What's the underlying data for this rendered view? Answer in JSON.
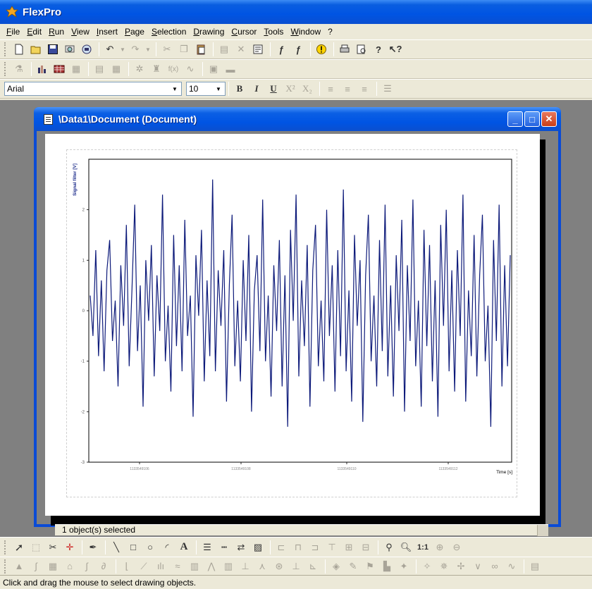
{
  "app": {
    "title": "FlexPro"
  },
  "menu": [
    "File",
    "Edit",
    "Run",
    "View",
    "Insert",
    "Page",
    "Selection",
    "Drawing",
    "Cursor",
    "Tools",
    "Window",
    "?"
  ],
  "format_toolbar": {
    "font": "Arial",
    "size": "10"
  },
  "document": {
    "title": "\\Data1\\Document (Document)"
  },
  "sub_status": "1 object(s) selected",
  "status_bar": "Click and drag the mouse to select drawing objects.",
  "chart_data": {
    "type": "line",
    "ylabel": "Signal filter [V]",
    "xlabel": "Time [s]",
    "ylim": [
      -3,
      3
    ],
    "yticks": [
      -3,
      -2,
      -1,
      0,
      1,
      2
    ],
    "xticks": [
      "1133549106",
      "1133549108",
      "1133549110",
      "1133549112"
    ],
    "color": "#0d1a7a",
    "series": [
      {
        "values": [
          0.3,
          -0.5,
          1.2,
          -0.9,
          0.6,
          -1.2,
          0.8,
          1.4,
          -0.6,
          0.2,
          -1.5,
          0.9,
          -0.3,
          1.7,
          -1.1,
          0.4,
          2.1,
          -0.8,
          0.5,
          -1.9,
          1.0,
          -0.2,
          1.3,
          -1.3,
          0.7,
          -0.4,
          2.3,
          -1.0,
          0.1,
          -1.6,
          1.5,
          -0.7,
          0.9,
          -1.2,
          1.8,
          -0.5,
          0.3,
          -2.1,
          1.1,
          -0.1,
          1.6,
          -1.4,
          0.6,
          -0.9,
          2.6,
          -1.2,
          0.8,
          -0.3,
          1.2,
          -1.8,
          0.5,
          1.9,
          -1.1,
          0.2,
          -1.4,
          1.0,
          -0.6,
          1.5,
          -2.0,
          0.4,
          1.1,
          -0.8,
          2.2,
          -1.0,
          0.3,
          -1.7,
          0.9,
          -0.4,
          1.4,
          -1.5,
          0.7,
          -2.3,
          1.6,
          -0.2,
          2.3,
          -1.3,
          0.6,
          -0.7,
          1.3,
          -1.9,
          0.8,
          1.7,
          -1.1,
          0.2,
          -1.4,
          2.0,
          -0.5,
          0.9,
          -1.6,
          1.2,
          -0.9,
          2.4,
          -1.2,
          0.4,
          -1.8,
          1.5,
          -0.3,
          1.0,
          -2.2,
          0.7,
          1.9,
          -1.0,
          0.3,
          -1.5,
          1.4,
          -0.8,
          2.1,
          -1.3,
          0.5,
          -1.7,
          1.1,
          -0.4,
          1.8,
          -2.0,
          0.9,
          -0.6,
          2.2,
          -1.1,
          0.2,
          -1.9,
          1.6,
          -0.7,
          1.3,
          -1.4,
          0.6,
          -2.1,
          1.7,
          -0.3,
          2.0,
          -1.2,
          0.8,
          -1.6,
          1.2,
          -0.5,
          2.3,
          -1.8,
          0.4,
          -0.9,
          1.5,
          -1.3,
          0.7,
          1.9,
          -1.0,
          0.1,
          -2.3,
          1.4,
          -0.6,
          2.1,
          -1.5,
          0.9,
          -1.1,
          1.1
        ]
      }
    ]
  },
  "icons": {
    "toolbar1": [
      "new-icon",
      "open-icon",
      "save-icon",
      "print-preview-icon",
      "properties-icon",
      "undo-icon",
      "redo-icon",
      "cut-icon",
      "copy-icon",
      "paste-icon",
      "paste-special-icon",
      "delete-icon",
      "properties-sheet-icon",
      "formula-icon",
      "formula2-icon",
      "warning-icon",
      "print-icon",
      "preview-icon",
      "help-icon",
      "context-help-icon"
    ]
  }
}
